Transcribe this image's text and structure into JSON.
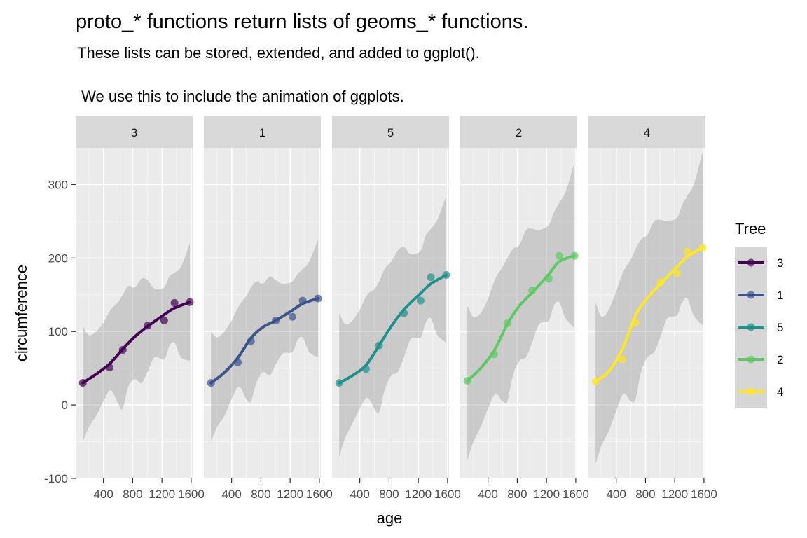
{
  "chart_data": {
    "type": "line",
    "title": "proto_* functions return lists of geoms_* functions.",
    "subtitle_line1": "These lists can be stored, extended, and added to ggplot().",
    "subtitle_line2": " We use this to include the animation of ggplots.",
    "xlabel": "age",
    "ylabel": "circumference",
    "xlim": [
      20,
      1620
    ],
    "ylim": [
      -100,
      350
    ],
    "x_ticks": [
      400,
      800,
      1200,
      1600
    ],
    "x_tick_labels": [
      "400",
      "800",
      "1200",
      "1600"
    ],
    "y_ticks": [
      -100,
      0,
      100,
      200,
      300
    ],
    "y_tick_labels": [
      "-100",
      "0",
      "100",
      "200",
      "300"
    ],
    "grid": true,
    "legend_title": "Tree",
    "legend_position": "right",
    "legend_labels": [
      "3",
      "1",
      "5",
      "2",
      "4"
    ],
    "age": [
      118,
      484,
      664,
      1004,
      1231,
      1372,
      1582
    ],
    "panels": [
      {
        "label": "3",
        "color": "#440154",
        "points": [
          30,
          51,
          75,
          108,
          115,
          139,
          140
        ],
        "smooth": [
          [
            118,
            30
          ],
          [
            300,
            42
          ],
          [
            484,
            56
          ],
          [
            664,
            76
          ],
          [
            830,
            93
          ],
          [
            1004,
            107
          ],
          [
            1231,
            123
          ],
          [
            1372,
            132
          ],
          [
            1582,
            140
          ]
        ],
        "ribbon_upper": [
          [
            118,
            108
          ],
          [
            200,
            95
          ],
          [
            300,
            100
          ],
          [
            400,
            112
          ],
          [
            500,
            130
          ],
          [
            600,
            140
          ],
          [
            664,
            150
          ],
          [
            740,
            162
          ],
          [
            830,
            160
          ],
          [
            920,
            172
          ],
          [
            1004,
            170
          ],
          [
            1100,
            158
          ],
          [
            1231,
            160
          ],
          [
            1300,
            175
          ],
          [
            1372,
            180
          ],
          [
            1460,
            188
          ],
          [
            1582,
            220
          ]
        ],
        "ribbon_lower": [
          [
            118,
            -50
          ],
          [
            200,
            -30
          ],
          [
            300,
            -15
          ],
          [
            400,
            5
          ],
          [
            500,
            20
          ],
          [
            600,
            2
          ],
          [
            664,
            -5
          ],
          [
            740,
            25
          ],
          [
            830,
            35
          ],
          [
            920,
            30
          ],
          [
            1004,
            45
          ],
          [
            1100,
            65
          ],
          [
            1231,
            62
          ],
          [
            1300,
            80
          ],
          [
            1372,
            85
          ],
          [
            1460,
            65
          ],
          [
            1582,
            60
          ]
        ]
      },
      {
        "label": "1",
        "color": "#3b528b",
        "points": [
          30,
          58,
          87,
          115,
          120,
          142,
          145
        ],
        "smooth": [
          [
            118,
            30
          ],
          [
            300,
            44
          ],
          [
            484,
            64
          ],
          [
            664,
            91
          ],
          [
            830,
            106
          ],
          [
            1004,
            115
          ],
          [
            1231,
            129
          ],
          [
            1372,
            138
          ],
          [
            1582,
            145
          ]
        ],
        "ribbon_upper": [
          [
            118,
            100
          ],
          [
            200,
            92
          ],
          [
            300,
            100
          ],
          [
            400,
            115
          ],
          [
            500,
            135
          ],
          [
            600,
            148
          ],
          [
            664,
            160
          ],
          [
            740,
            168
          ],
          [
            830,
            165
          ],
          [
            920,
            175
          ],
          [
            1004,
            170
          ],
          [
            1100,
            165
          ],
          [
            1231,
            168
          ],
          [
            1300,
            178
          ],
          [
            1372,
            185
          ],
          [
            1460,
            195
          ],
          [
            1582,
            225
          ]
        ],
        "ribbon_lower": [
          [
            118,
            -50
          ],
          [
            200,
            -30
          ],
          [
            300,
            -15
          ],
          [
            400,
            8
          ],
          [
            500,
            25
          ],
          [
            600,
            8
          ],
          [
            664,
            5
          ],
          [
            740,
            30
          ],
          [
            830,
            45
          ],
          [
            920,
            40
          ],
          [
            1004,
            55
          ],
          [
            1100,
            70
          ],
          [
            1231,
            72
          ],
          [
            1300,
            88
          ],
          [
            1372,
            92
          ],
          [
            1460,
            72
          ],
          [
            1582,
            65
          ]
        ]
      },
      {
        "label": "5",
        "color": "#21908c",
        "points": [
          30,
          49,
          81,
          125,
          142,
          174,
          177
        ],
        "smooth": [
          [
            118,
            30
          ],
          [
            300,
            40
          ],
          [
            484,
            54
          ],
          [
            664,
            81
          ],
          [
            830,
            107
          ],
          [
            1004,
            130
          ],
          [
            1231,
            152
          ],
          [
            1372,
            165
          ],
          [
            1582,
            177
          ]
        ],
        "ribbon_upper": [
          [
            118,
            125
          ],
          [
            200,
            110
          ],
          [
            300,
            115
          ],
          [
            400,
            130
          ],
          [
            500,
            150
          ],
          [
            600,
            158
          ],
          [
            664,
            168
          ],
          [
            740,
            185
          ],
          [
            830,
            195
          ],
          [
            920,
            210
          ],
          [
            1004,
            215
          ],
          [
            1100,
            205
          ],
          [
            1231,
            210
          ],
          [
            1300,
            230
          ],
          [
            1372,
            240
          ],
          [
            1460,
            252
          ],
          [
            1582,
            285
          ]
        ],
        "ribbon_lower": [
          [
            118,
            -70
          ],
          [
            200,
            -45
          ],
          [
            300,
            -25
          ],
          [
            400,
            -5
          ],
          [
            500,
            10
          ],
          [
            600,
            -5
          ],
          [
            664,
            -10
          ],
          [
            740,
            20
          ],
          [
            830,
            40
          ],
          [
            920,
            45
          ],
          [
            1004,
            65
          ],
          [
            1100,
            90
          ],
          [
            1231,
            92
          ],
          [
            1300,
            112
          ],
          [
            1372,
            118
          ],
          [
            1460,
            95
          ],
          [
            1582,
            85
          ]
        ]
      },
      {
        "label": "2",
        "color": "#5ec962",
        "points": [
          33,
          69,
          111,
          156,
          172,
          203,
          203
        ],
        "smooth": [
          [
            118,
            33
          ],
          [
            300,
            50
          ],
          [
            484,
            74
          ],
          [
            664,
            110
          ],
          [
            830,
            135
          ],
          [
            1004,
            153
          ],
          [
            1231,
            178
          ],
          [
            1372,
            195
          ],
          [
            1582,
            203
          ]
        ],
        "ribbon_upper": [
          [
            118,
            135
          ],
          [
            200,
            120
          ],
          [
            300,
            125
          ],
          [
            400,
            145
          ],
          [
            500,
            172
          ],
          [
            600,
            188
          ],
          [
            664,
            200
          ],
          [
            740,
            212
          ],
          [
            830,
            218
          ],
          [
            920,
            238
          ],
          [
            1004,
            240
          ],
          [
            1100,
            238
          ],
          [
            1231,
            245
          ],
          [
            1300,
            262
          ],
          [
            1372,
            275
          ],
          [
            1460,
            290
          ],
          [
            1582,
            330
          ]
        ],
        "ribbon_lower": [
          [
            118,
            -75
          ],
          [
            200,
            -50
          ],
          [
            300,
            -30
          ],
          [
            400,
            -5
          ],
          [
            500,
            15
          ],
          [
            600,
            5
          ],
          [
            664,
            5
          ],
          [
            740,
            40
          ],
          [
            830,
            60
          ],
          [
            920,
            65
          ],
          [
            1004,
            85
          ],
          [
            1100,
            110
          ],
          [
            1231,
            115
          ],
          [
            1300,
            135
          ],
          [
            1372,
            140
          ],
          [
            1460,
            118
          ],
          [
            1582,
            105
          ]
        ]
      },
      {
        "label": "4",
        "color": "#fde725",
        "points": [
          32,
          62,
          112,
          167,
          179,
          209,
          214
        ],
        "smooth": [
          [
            118,
            32
          ],
          [
            300,
            46
          ],
          [
            484,
            76
          ],
          [
            664,
            122
          ],
          [
            830,
            146
          ],
          [
            1004,
            165
          ],
          [
            1231,
            188
          ],
          [
            1372,
            202
          ],
          [
            1582,
            214
          ]
        ],
        "ribbon_upper": [
          [
            118,
            140
          ],
          [
            200,
            120
          ],
          [
            300,
            130
          ],
          [
            400,
            155
          ],
          [
            500,
            182
          ],
          [
            600,
            198
          ],
          [
            664,
            212
          ],
          [
            740,
            225
          ],
          [
            830,
            232
          ],
          [
            920,
            250
          ],
          [
            1004,
            252
          ],
          [
            1100,
            250
          ],
          [
            1231,
            255
          ],
          [
            1300,
            272
          ],
          [
            1372,
            285
          ],
          [
            1460,
            300
          ],
          [
            1582,
            345
          ]
        ],
        "ribbon_lower": [
          [
            118,
            -80
          ],
          [
            200,
            -55
          ],
          [
            300,
            -35
          ],
          [
            400,
            -8
          ],
          [
            500,
            15
          ],
          [
            600,
            5
          ],
          [
            664,
            8
          ],
          [
            740,
            45
          ],
          [
            830,
            65
          ],
          [
            920,
            72
          ],
          [
            1004,
            92
          ],
          [
            1100,
            118
          ],
          [
            1231,
            122
          ],
          [
            1300,
            140
          ],
          [
            1372,
            145
          ],
          [
            1460,
            122
          ],
          [
            1582,
            108
          ]
        ]
      }
    ]
  }
}
